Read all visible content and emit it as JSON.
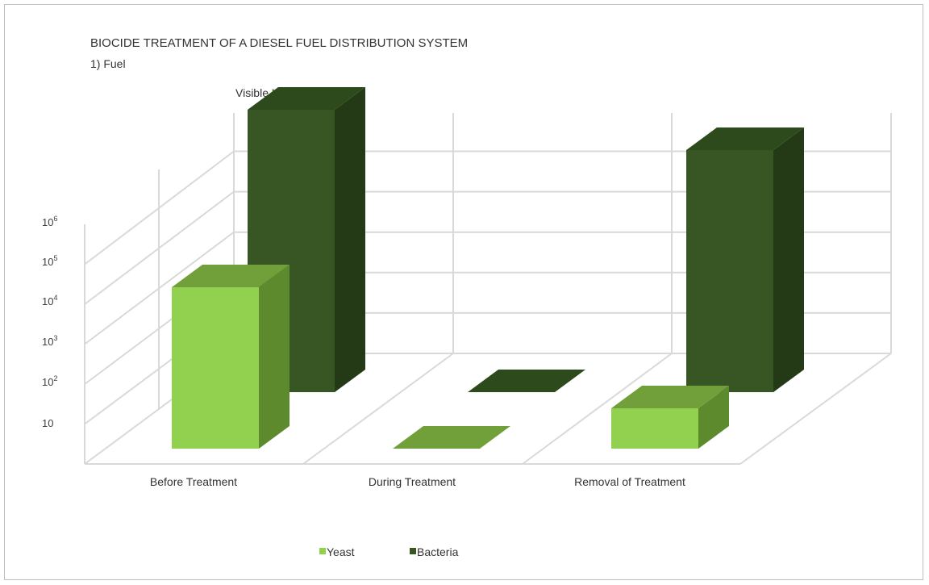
{
  "chart_data": {
    "type": "bar",
    "title": "BIOCIDE  TREATMENT  OF A DIESEL FUEL DISTRIBUTION  SYSTEM",
    "subtitle": "1) Fuel",
    "ylabel": "Visible Units / litre",
    "y_scale": "log",
    "y_ticks": [
      {
        "base": "10",
        "exp": ""
      },
      {
        "base": "10",
        "exp": "2"
      },
      {
        "base": "10",
        "exp": "3"
      },
      {
        "base": "10",
        "exp": "4"
      },
      {
        "base": "10",
        "exp": "5"
      },
      {
        "base": "10",
        "exp": "6"
      }
    ],
    "ylim": [
      1,
      10000000000
    ],
    "categories": [
      "Before Treatment",
      "During Treatment",
      "Removal of Treatment"
    ],
    "series": [
      {
        "name": "Yeast",
        "values": [
          10000,
          1,
          10
        ],
        "color": "#92d050",
        "side_color": "#5e8a2e",
        "top_color": "#71a03a"
      },
      {
        "name": "Bacteria",
        "values": [
          10000000,
          1,
          1000000
        ],
        "color": "#375623",
        "side_color": "#243a16",
        "top_color": "#2d4a1c"
      }
    ],
    "grid": true,
    "legend_position": "bottom"
  }
}
